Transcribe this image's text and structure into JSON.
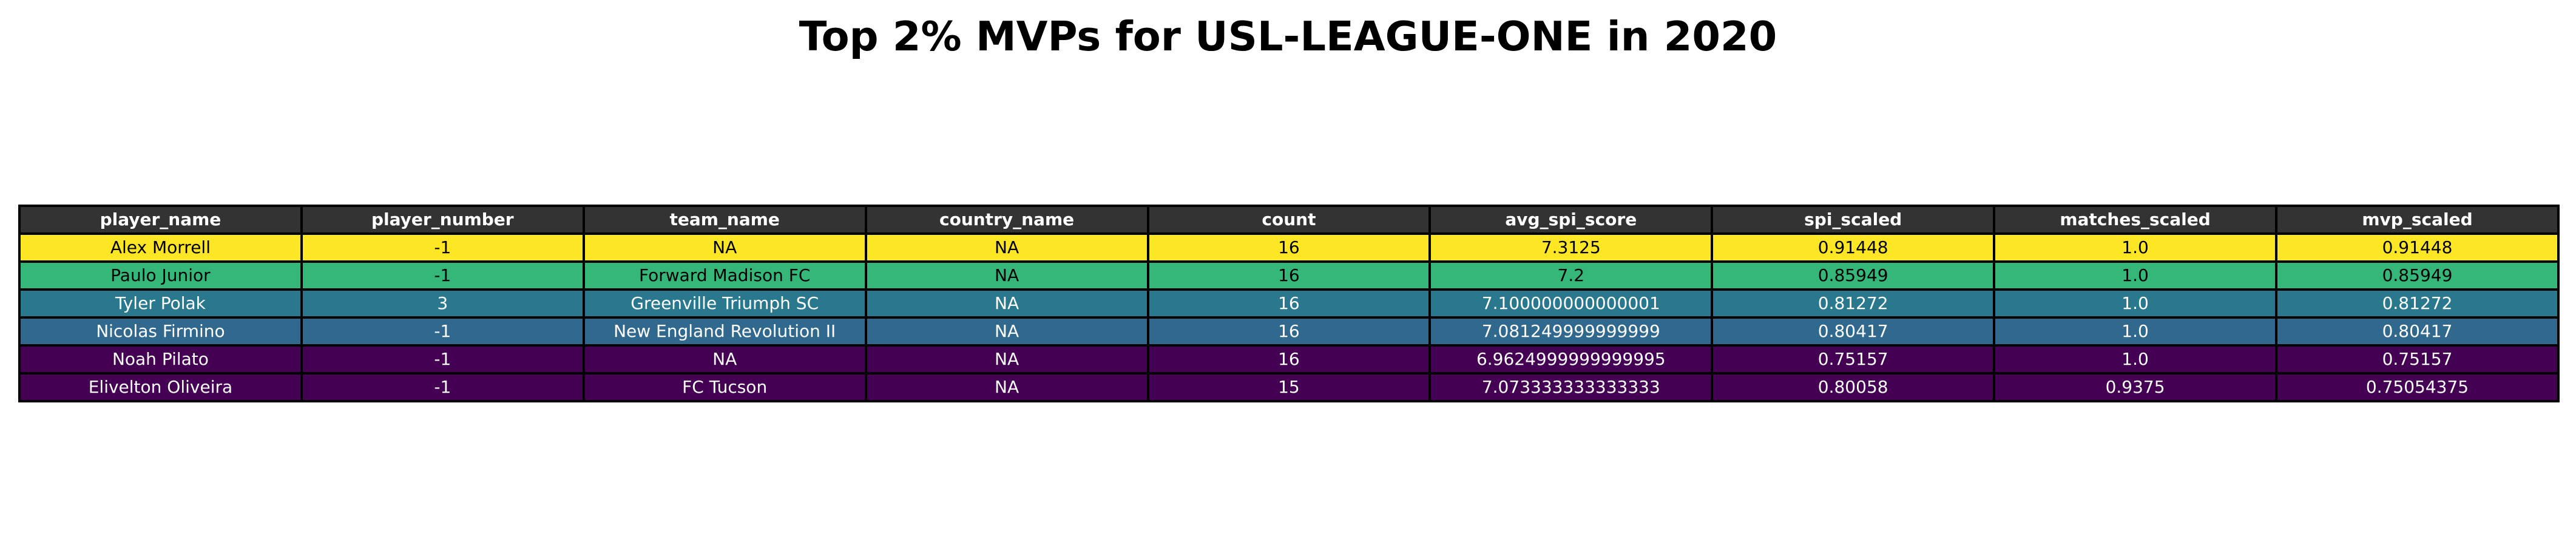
{
  "chart_data": {
    "type": "table",
    "title": "Top 2% MVPs for USL-LEAGUE-ONE in 2020",
    "header_color": "#333333",
    "header_text_color": "#ffffff",
    "columns": [
      "player_name",
      "player_number",
      "team_name",
      "country_name",
      "count",
      "avg_spi_score",
      "spi_scaled",
      "matches_scaled",
      "mvp_scaled"
    ],
    "rows": [
      {
        "cells": [
          "Alex Morrell",
          "-1",
          "NA",
          "NA",
          "16",
          "7.3125",
          "0.91448",
          "1.0",
          "0.91448"
        ],
        "color": "#fde725",
        "text_color": "#000000"
      },
      {
        "cells": [
          "Paulo Junior",
          "-1",
          "Forward Madison FC",
          "NA",
          "16",
          "7.2",
          "0.85949",
          "1.0",
          "0.85949"
        ],
        "color": "#35b779",
        "text_color": "#000000"
      },
      {
        "cells": [
          "Tyler Polak",
          "3",
          "Greenville Triumph SC",
          "NA",
          "16",
          "7.100000000000001",
          "0.81272",
          "1.0",
          "0.81272"
        ],
        "color": "#2a788e",
        "text_color": "#ffffff"
      },
      {
        "cells": [
          "Nicolas Firmino",
          "-1",
          "New England Revolution II",
          "NA",
          "16",
          "7.081249999999999",
          "0.80417",
          "1.0",
          "0.80417"
        ],
        "color": "#31688e",
        "text_color": "#ffffff"
      },
      {
        "cells": [
          "Noah Pilato",
          "-1",
          "NA",
          "NA",
          "16",
          "6.9624999999999995",
          "0.75157",
          "1.0",
          "0.75157"
        ],
        "color": "#440154",
        "text_color": "#ffffff"
      },
      {
        "cells": [
          "Elivelton Oliveira",
          "-1",
          "FC Tucson",
          "NA",
          "15",
          "7.073333333333333",
          "0.80058",
          "0.9375",
          "0.75054375"
        ],
        "color": "#440154",
        "text_color": "#ffffff"
      }
    ]
  }
}
